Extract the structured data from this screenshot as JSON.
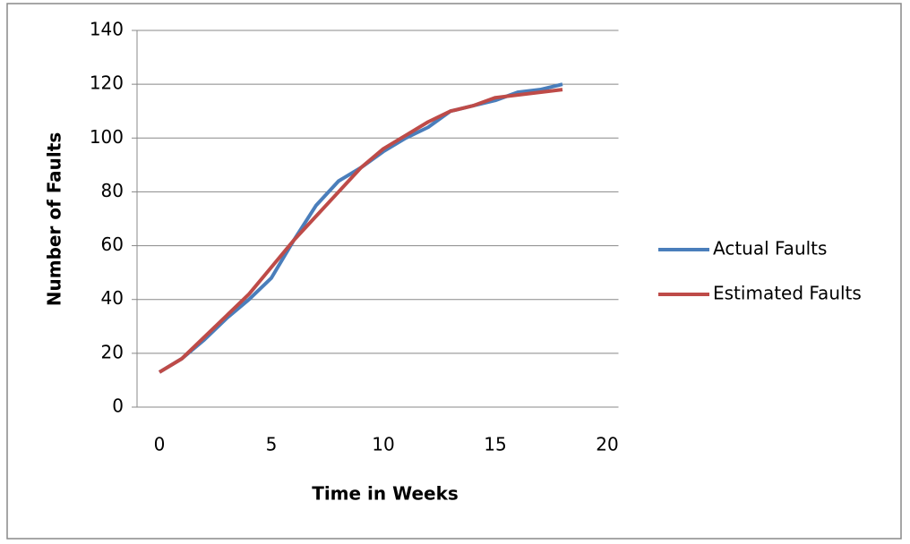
{
  "chart_data": {
    "type": "line",
    "x_label": "Time in Weeks",
    "y_label": "Number of Faults",
    "x": [
      0,
      1,
      2,
      3,
      4,
      5,
      6,
      7,
      8,
      9,
      10,
      11,
      12,
      13,
      14,
      15,
      16,
      17,
      18
    ],
    "series": [
      {
        "name": "Actual Faults",
        "color": "#4a7ebb",
        "values": [
          13,
          18,
          25,
          33,
          40,
          48,
          62,
          75,
          84,
          89,
          95,
          100,
          104,
          110,
          112,
          114,
          117,
          118,
          120
        ]
      },
      {
        "name": "Estimated Faults",
        "color": "#be4b48",
        "values": [
          13,
          18,
          26,
          34,
          42,
          52,
          62,
          71,
          80,
          89,
          96,
          101,
          106,
          110,
          112,
          115,
          116,
          117,
          118
        ]
      }
    ],
    "xlim": [
      -1,
      20.5
    ],
    "xticks": [
      0,
      5,
      10,
      15,
      20
    ],
    "ylim": [
      0,
      140
    ],
    "yticks": [
      0,
      20,
      40,
      60,
      80,
      100,
      120,
      140
    ],
    "grid": true,
    "legend": "right"
  }
}
